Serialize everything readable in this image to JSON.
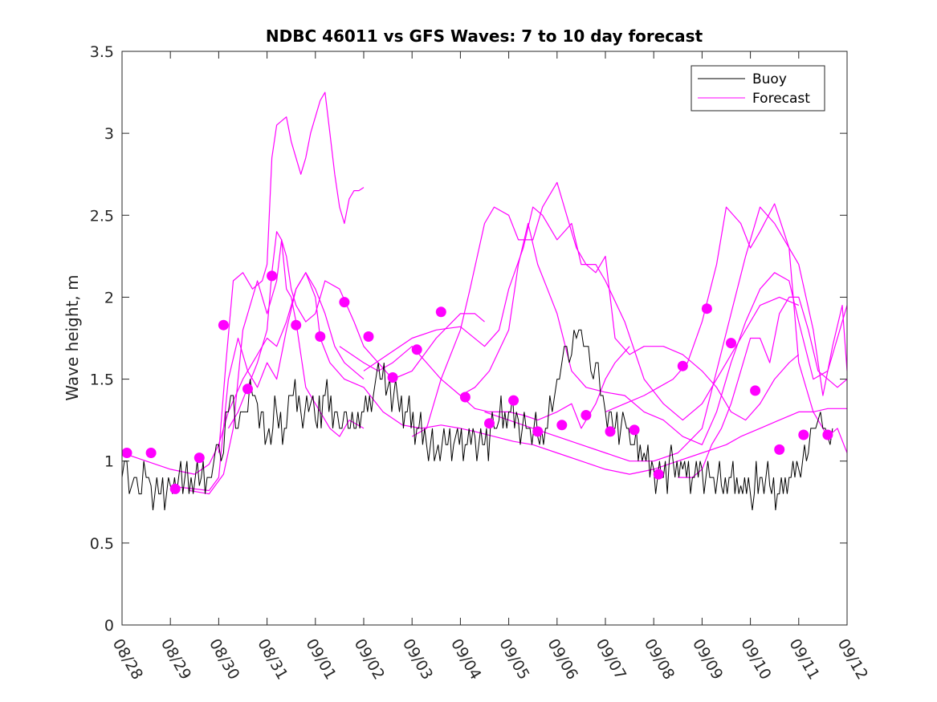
{
  "chart_data": {
    "type": "line",
    "title": "NDBC 46011 vs GFS Waves: 7 to 10 day forecast",
    "xlabel": "",
    "ylabel": "Wave height, m",
    "xlim": [
      0,
      15
    ],
    "ylim": [
      0,
      3.5
    ],
    "x_tick_labels": [
      "08/28",
      "08/29",
      "08/30",
      "08/31",
      "09/01",
      "09/02",
      "09/03",
      "09/04",
      "09/05",
      "09/06",
      "09/07",
      "09/08",
      "09/09",
      "09/10",
      "09/11",
      "09/12"
    ],
    "y_tick_labels": [
      "0",
      "0.5",
      "1",
      "1.5",
      "2",
      "2.5",
      "3",
      "3.5"
    ],
    "y_ticks": [
      0,
      0.5,
      1,
      1.5,
      2,
      2.5,
      3,
      3.5
    ],
    "legend": {
      "position": "top-right",
      "entries": [
        "Buoy",
        "Forecast"
      ]
    },
    "colors": {
      "buoy": "#000000",
      "forecast": "#ff00ff",
      "axis": "#262626"
    },
    "buoy": {
      "name": "Buoy",
      "x": [
        0,
        0.1,
        0.2,
        0.3,
        0.4,
        0.5,
        0.6,
        0.8,
        1,
        1.3,
        1.6,
        1.8,
        1.9,
        2.0,
        2.1,
        2.2,
        2.3,
        2.4,
        2.5,
        2.6,
        2.7,
        2.8,
        3.0,
        3.2,
        3.4,
        3.5,
        3.7,
        3.9,
        4.0,
        4.2,
        4.4,
        4.5,
        4.6,
        4.8,
        5.0,
        5.2,
        5.3,
        5.5,
        5.7,
        5.9,
        6.1,
        6.3,
        6.5,
        6.7,
        6.9,
        7.1,
        7.3,
        7.5,
        7.7,
        7.8,
        8.0,
        8.2,
        8.4,
        8.6,
        8.8,
        8.9,
        9.0,
        9.1,
        9.2,
        9.3,
        9.4,
        9.5,
        9.6,
        9.7,
        9.8,
        9.9,
        10.0,
        10.2,
        10.4,
        10.6,
        10.8,
        11.0,
        11.2,
        11.4,
        11.6,
        11.8,
        12.0,
        12.2,
        12.4,
        12.6,
        12.8,
        13.0,
        13.2,
        13.4,
        13.6,
        13.8,
        14.0,
        14.2,
        14.3,
        14.4,
        14.5,
        14.6,
        14.7
      ],
      "values": [
        0.9,
        1.0,
        0.85,
        0.9,
        0.8,
        0.9,
        0.85,
        0.8,
        0.85,
        0.9,
        0.85,
        0.9,
        1.0,
        1.1,
        1.05,
        1.3,
        1.4,
        1.2,
        1.3,
        1.3,
        1.4,
        1.35,
        1.15,
        1.3,
        1.2,
        1.4,
        1.3,
        1.35,
        1.25,
        1.4,
        1.3,
        1.2,
        1.3,
        1.2,
        1.3,
        1.4,
        1.6,
        1.45,
        1.4,
        1.3,
        1.2,
        1.1,
        1.05,
        1.1,
        1.15,
        1.1,
        1.15,
        1.1,
        1.2,
        1.25,
        1.3,
        1.25,
        1.2,
        1.15,
        1.2,
        1.3,
        1.5,
        1.6,
        1.7,
        1.65,
        1.75,
        1.8,
        1.7,
        1.55,
        1.6,
        1.4,
        1.3,
        1.2,
        1.25,
        1.1,
        1.05,
        0.95,
        0.9,
        1.0,
        0.95,
        0.9,
        0.95,
        0.9,
        0.85,
        0.9,
        0.85,
        0.8,
        0.9,
        0.85,
        0.8,
        0.9,
        0.95,
        1.05,
        1.2,
        1.25,
        1.2,
        1.15,
        1.2
      ]
    },
    "forecasts": [
      {
        "name": "Forecast",
        "x": [
          0,
          0.5,
          1,
          1.5,
          1.8,
          2.0,
          2.2,
          2.5,
          2.8,
          3.0,
          3.2,
          3.4,
          3.6,
          3.8,
          4.0,
          4.2,
          4.4,
          4.6,
          4.8,
          5.0
        ],
        "values": [
          1.05,
          1.0,
          0.95,
          0.92,
          0.98,
          1.1,
          1.3,
          1.5,
          1.65,
          1.75,
          1.7,
          1.85,
          2.05,
          2.15,
          2.05,
          1.9,
          1.7,
          1.6,
          1.55,
          1.5
        ]
      },
      {
        "name": "Forecast",
        "x": [
          1.2,
          1.5,
          1.8,
          2.0,
          2.1,
          2.2,
          2.4,
          2.6,
          2.8,
          3.0,
          3.2,
          3.4,
          3.6,
          3.8,
          4.0,
          4.1,
          4.3,
          4.6,
          5.0,
          5.4,
          5.8,
          6.2,
          6.6,
          7.0,
          7.3,
          7.7,
          8.1,
          8.5,
          9.0,
          9.5,
          10.0,
          10.5,
          11.0,
          11.5,
          12.0,
          12.5,
          12.8,
          13.2,
          13.6,
          14.0,
          14.3,
          14.6,
          15.0
        ],
        "values": [
          0.84,
          0.83,
          0.82,
          0.9,
          1.2,
          1.5,
          1.75,
          1.55,
          1.45,
          1.6,
          1.5,
          1.8,
          2.05,
          2.15,
          2.0,
          1.75,
          1.6,
          1.5,
          1.45,
          1.3,
          1.22,
          1.2,
          1.22,
          1.2,
          1.18,
          1.15,
          1.12,
          1.1,
          1.05,
          1.0,
          0.95,
          0.92,
          0.95,
          1.0,
          1.05,
          1.1,
          1.15,
          1.2,
          1.25,
          1.3,
          1.3,
          1.32,
          1.32
        ]
      },
      {
        "name": "Forecast",
        "x": [
          1.4,
          1.8,
          2.1,
          2.3,
          2.5,
          2.8,
          3.0,
          3.2,
          3.3,
          3.4,
          3.5,
          3.6,
          3.7,
          3.8,
          4.0,
          4.3,
          4.5,
          4.7,
          5.0
        ],
        "values": [
          0.82,
          0.8,
          0.92,
          1.2,
          1.8,
          2.1,
          1.9,
          2.1,
          2.35,
          2.05,
          2.0,
          1.85,
          1.65,
          1.45,
          1.35,
          1.2,
          1.15,
          1.25,
          1.2
        ]
      },
      {
        "name": "Forecast",
        "x": [
          2.0,
          2.15,
          2.3,
          2.5,
          2.7,
          2.9,
          3.0,
          3.1,
          3.2,
          3.4,
          3.5,
          3.7,
          3.8,
          3.9,
          4.0,
          4.1,
          4.2,
          4.3,
          4.4,
          4.5,
          4.6,
          4.7,
          4.8,
          4.9,
          5.0
        ],
        "values": [
          1.05,
          1.6,
          2.1,
          2.15,
          2.05,
          2.1,
          2.2,
          2.85,
          3.05,
          3.1,
          2.95,
          2.75,
          2.85,
          3.0,
          3.1,
          3.2,
          3.25,
          3.0,
          2.75,
          2.55,
          2.45,
          2.6,
          2.65,
          2.65,
          2.67
        ]
      },
      {
        "name": "Forecast",
        "x": [
          2.2,
          2.4,
          2.6,
          2.8,
          3.0,
          3.1,
          3.2,
          3.3,
          3.4,
          3.5,
          3.6,
          3.8,
          4.0,
          4.2,
          4.5,
          4.8,
          5.0,
          5.3,
          5.6,
          6.0,
          6.5,
          7.0,
          7.3,
          7.5
        ],
        "values": [
          1.2,
          1.3,
          1.45,
          1.6,
          1.8,
          2.15,
          2.4,
          2.35,
          2.25,
          2.05,
          1.95,
          1.85,
          1.9,
          2.1,
          2.05,
          1.85,
          1.7,
          1.6,
          1.5,
          1.55,
          1.75,
          1.9,
          1.9,
          1.85
        ]
      },
      {
        "name": "Forecast",
        "x": [
          4.5,
          5.0,
          5.3,
          5.6,
          6.0,
          6.3,
          6.6,
          7.0,
          7.3,
          7.6,
          8.0,
          8.3,
          8.6,
          9.0,
          9.3,
          9.5,
          9.8,
          10.0,
          10.2,
          10.5
        ],
        "values": [
          1.7,
          1.6,
          1.55,
          1.6,
          1.7,
          1.6,
          1.5,
          1.4,
          1.32,
          1.3,
          1.3,
          1.28,
          1.25,
          1.3,
          1.35,
          1.2,
          1.35,
          1.5,
          1.6,
          1.7
        ]
      },
      {
        "name": "Forecast",
        "x": [
          5.0,
          5.5,
          6.0,
          6.5,
          7.0,
          7.5,
          7.8,
          8.0,
          8.3,
          8.5,
          8.7,
          9.0,
          9.3,
          9.5,
          9.8,
          10.0,
          10.4,
          10.8,
          11.2,
          11.6,
          12.0,
          12.4,
          12.8,
          13.2,
          13.6,
          14.0
        ],
        "values": [
          1.55,
          1.65,
          1.75,
          1.8,
          1.82,
          1.7,
          1.8,
          2.05,
          2.3,
          2.55,
          2.5,
          2.35,
          2.45,
          2.2,
          2.2,
          2.1,
          1.85,
          1.5,
          1.35,
          1.25,
          1.35,
          1.55,
          1.75,
          1.95,
          2.0,
          1.95
        ]
      },
      {
        "name": "Forecast",
        "x": [
          6.0,
          6.3,
          6.6,
          7.0,
          7.2,
          7.5,
          7.7,
          8.0,
          8.2,
          8.5,
          8.7,
          8.9,
          9.0,
          9.2,
          9.4,
          9.6,
          9.8,
          10.0,
          10.2,
          10.5,
          10.8,
          11.2,
          11.6,
          12.0,
          12.3,
          12.6,
          12.9,
          13.2,
          13.5,
          13.8,
          14.0
        ],
        "values": [
          1.15,
          1.2,
          1.5,
          1.8,
          2.05,
          2.45,
          2.55,
          2.5,
          2.35,
          2.35,
          2.55,
          2.65,
          2.7,
          2.5,
          2.3,
          2.2,
          2.15,
          2.25,
          1.75,
          1.65,
          1.7,
          1.7,
          1.65,
          1.55,
          1.45,
          1.3,
          1.25,
          1.35,
          1.5,
          1.6,
          1.65
        ]
      },
      {
        "name": "Forecast",
        "x": [
          7.0,
          7.3,
          7.6,
          8.0,
          8.2,
          8.4,
          8.6,
          8.8,
          9.0,
          9.3,
          9.6,
          10.0,
          10.4,
          10.8,
          11.2,
          11.6,
          12.0,
          12.3,
          12.6,
          12.9,
          13.2,
          13.5,
          13.8,
          14.0,
          14.3,
          14.6,
          15.0
        ],
        "values": [
          1.4,
          1.45,
          1.55,
          1.8,
          2.2,
          2.45,
          2.2,
          2.05,
          1.9,
          1.55,
          1.45,
          1.42,
          1.4,
          1.3,
          1.25,
          1.15,
          1.1,
          1.3,
          1.6,
          1.85,
          2.05,
          2.15,
          2.1,
          1.85,
          1.5,
          1.55,
          1.95
        ]
      },
      {
        "name": "Forecast",
        "x": [
          7.5,
          8.0,
          8.5,
          9.0,
          9.5,
          10.0,
          10.5,
          11.0,
          11.5,
          12.0,
          12.3,
          12.6,
          12.9,
          13.2,
          13.5,
          13.8,
          14.0,
          14.3,
          14.5,
          14.7,
          14.9,
          15.0
        ],
        "values": [
          1.3,
          1.25,
          1.2,
          1.15,
          1.1,
          1.05,
          1.0,
          1.0,
          1.05,
          1.2,
          1.55,
          1.9,
          2.25,
          2.55,
          2.45,
          2.3,
          2.2,
          1.8,
          1.4,
          1.7,
          1.95,
          1.55
        ]
      },
      {
        "name": "Forecast",
        "x": [
          10.0,
          10.4,
          10.8,
          11.1,
          11.4,
          11.7,
          12.0,
          12.3,
          12.5,
          12.8,
          13.0,
          13.2,
          13.5,
          13.8,
          14.0,
          14.3,
          14.6,
          14.8,
          15.0
        ],
        "values": [
          1.3,
          1.35,
          1.4,
          1.45,
          1.5,
          1.6,
          1.85,
          2.2,
          2.55,
          2.45,
          2.3,
          2.4,
          2.57,
          2.3,
          1.6,
          1.3,
          1.15,
          1.2,
          1.05
        ]
      },
      {
        "name": "Forecast",
        "x": [
          11.5,
          11.8,
          12.0,
          12.2,
          12.4,
          12.6,
          12.8,
          13.0,
          13.2,
          13.4,
          13.6,
          13.8,
          14.0,
          14.2,
          14.4,
          14.6,
          14.8,
          15.0
        ],
        "values": [
          0.9,
          0.9,
          0.95,
          1.1,
          1.2,
          1.35,
          1.55,
          1.75,
          1.75,
          1.6,
          1.9,
          2.0,
          2.0,
          1.8,
          1.55,
          1.5,
          1.45,
          1.5
        ]
      }
    ],
    "forecast_markers": {
      "name": "Forecast",
      "x": [
        0.1,
        0.6,
        1.1,
        1.6,
        2.1,
        2.6,
        3.1,
        3.6,
        4.1,
        4.6,
        5.1,
        5.6,
        6.1,
        6.6,
        7.1,
        7.6,
        8.1,
        8.6,
        9.1,
        9.6,
        10.1,
        10.6,
        11.1,
        11.6,
        12.1,
        12.6,
        13.1,
        13.6,
        14.1,
        14.6
      ],
      "values": [
        1.05,
        1.05,
        0.83,
        1.02,
        1.83,
        1.44,
        2.13,
        1.83,
        1.76,
        1.97,
        1.76,
        1.51,
        1.68,
        1.91,
        1.39,
        1.23,
        1.37,
        1.18,
        1.22,
        1.28,
        1.18,
        1.19,
        0.92,
        1.58,
        1.93,
        1.72,
        1.43,
        1.07,
        1.16,
        1.16
      ]
    }
  }
}
